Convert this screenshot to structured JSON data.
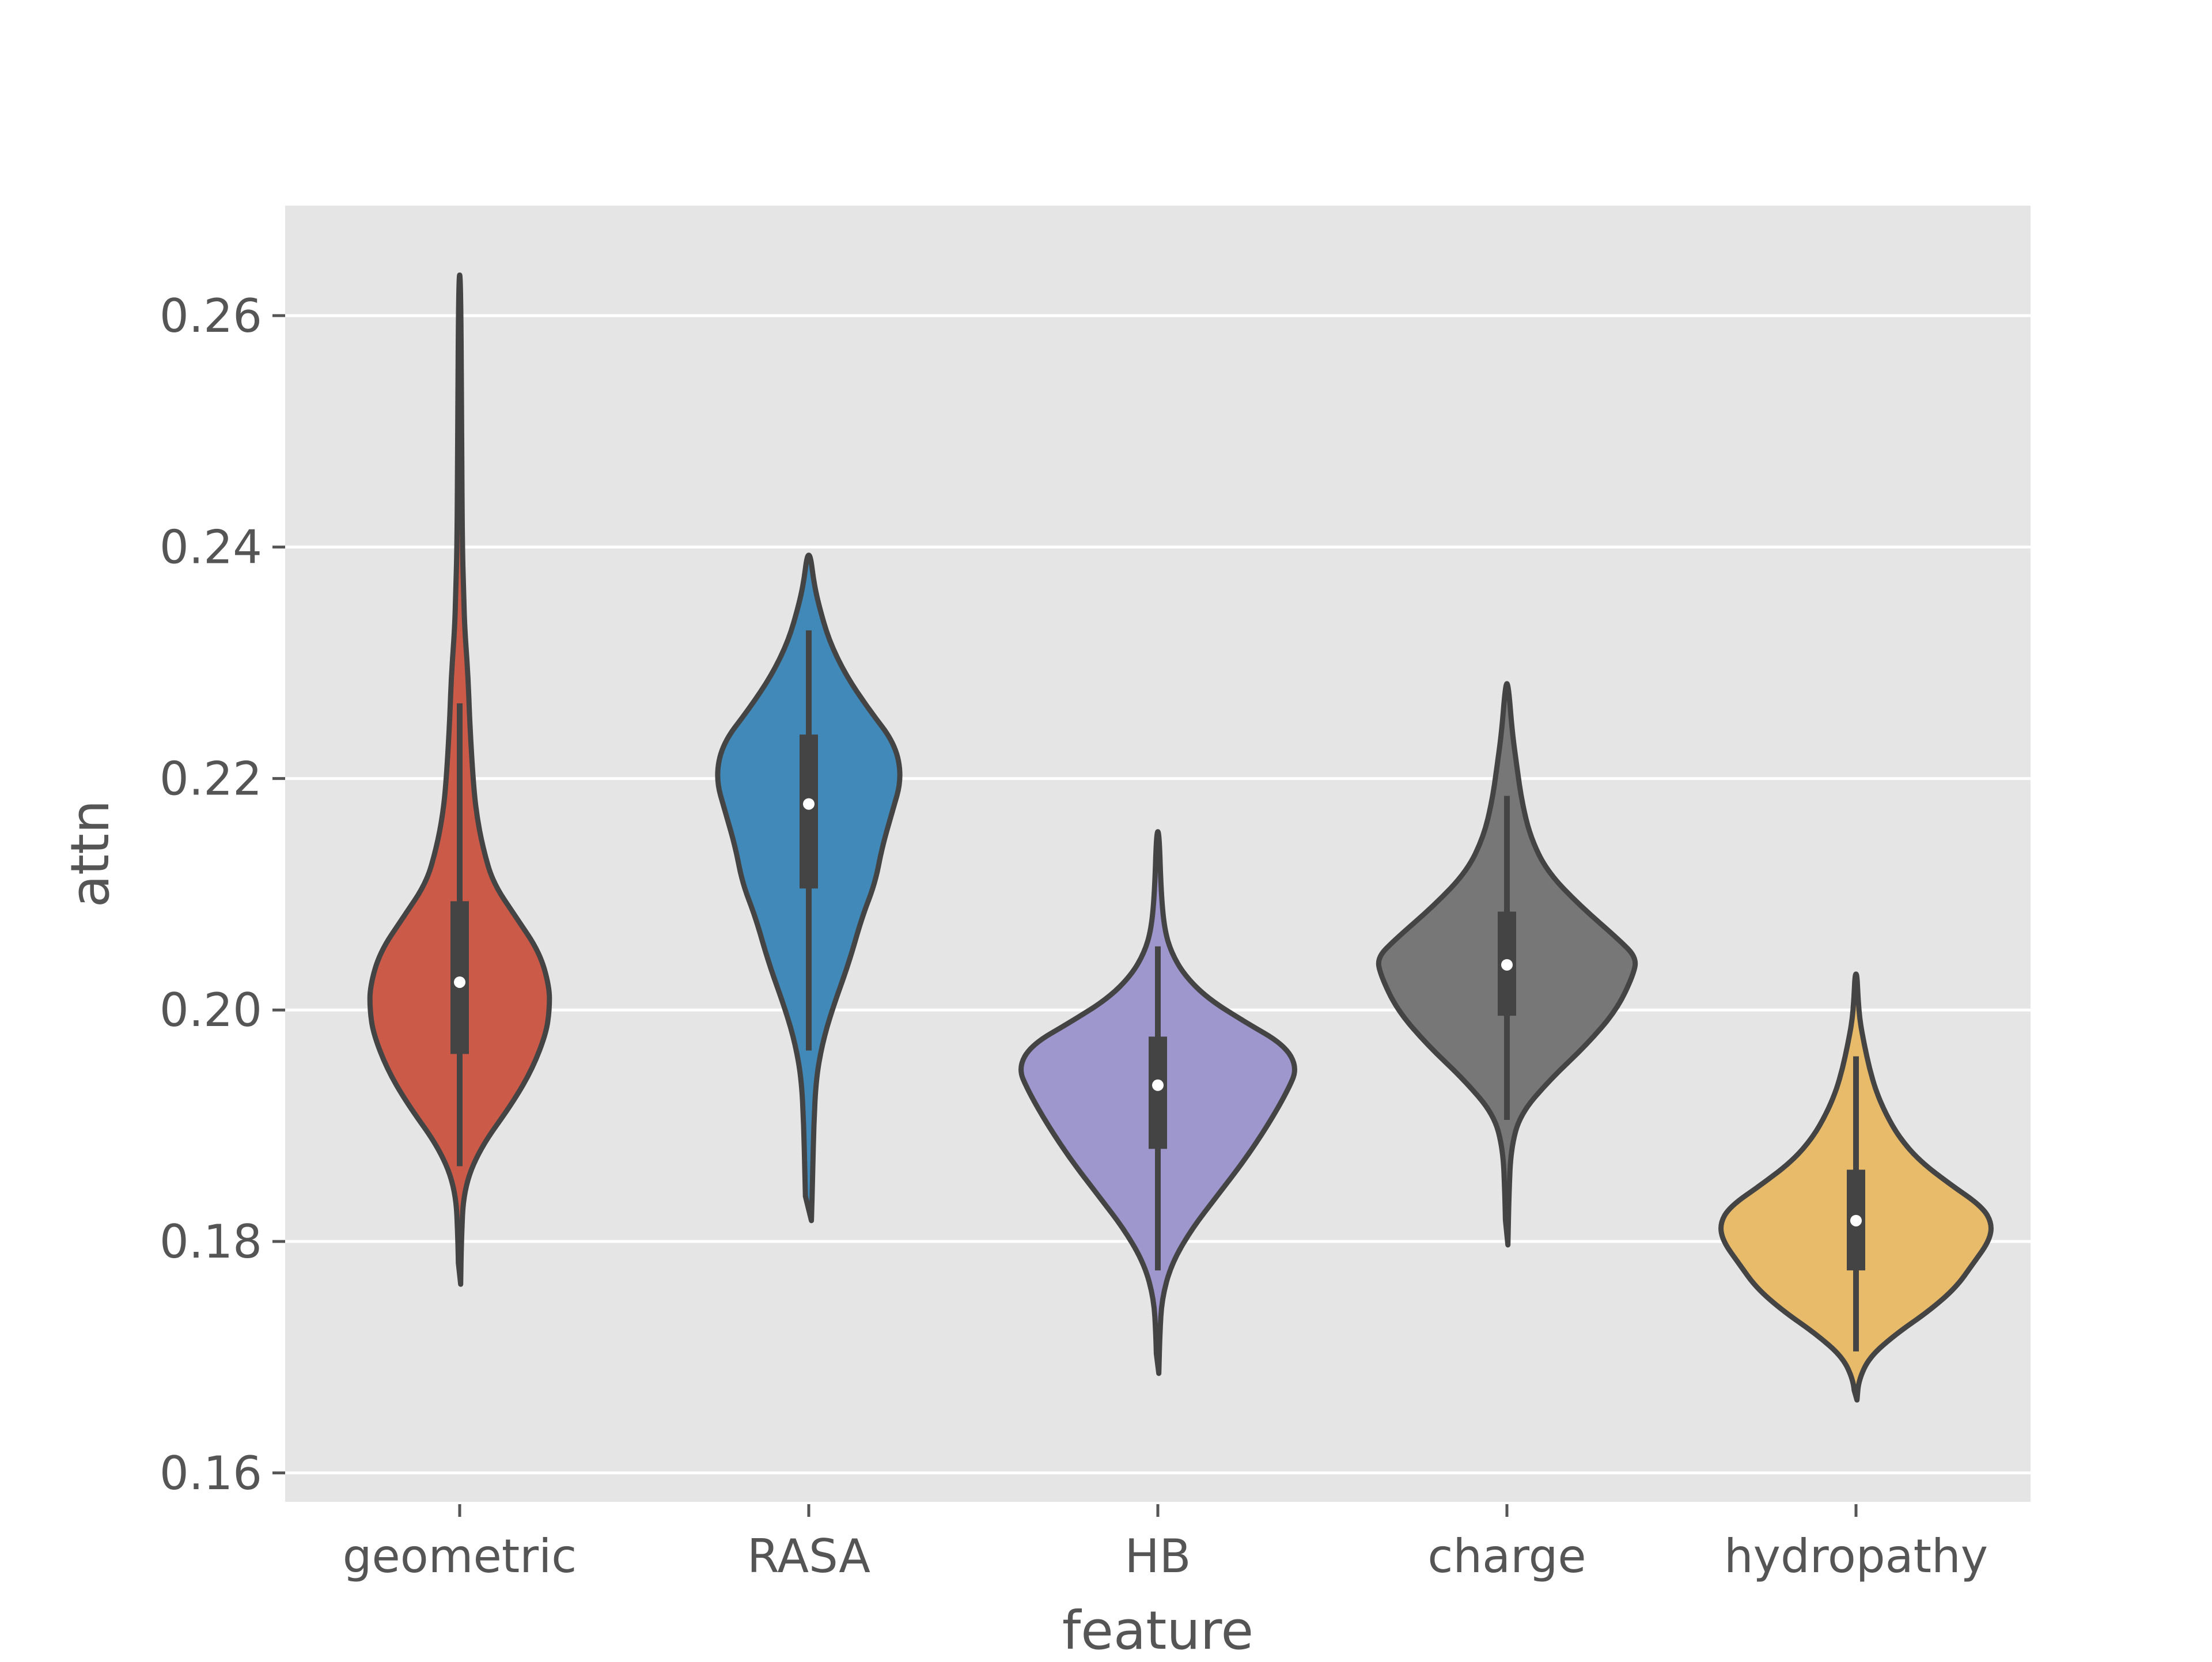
{
  "chart_data": {
    "type": "violin",
    "title": "",
    "xlabel": "feature",
    "ylabel": "attn",
    "ylim": [
      0.1575,
      0.2695
    ],
    "yticks": [
      0.16,
      0.18,
      0.2,
      0.22,
      0.24,
      0.26
    ],
    "ytick_labels": [
      "0.16",
      "0.18",
      "0.20",
      "0.22",
      "0.24",
      "0.26"
    ],
    "grid": true,
    "legend": "none",
    "categories": [
      "geometric",
      "RASA",
      "HB",
      "charge",
      "hydropathy"
    ],
    "series": [
      {
        "color": "#cc5a48",
        "min": 0.1763,
        "max": 0.2635,
        "q1": 0.1962,
        "median": 0.2024,
        "q3": 0.2094,
        "whisker_low": 0.1865,
        "whisker_high": 0.2265,
        "profile": [
          [
            0.1763,
            0.003
          ],
          [
            0.18,
            0.005
          ],
          [
            0.1845,
            0.012
          ],
          [
            0.188,
            0.06
          ],
          [
            0.192,
            0.16
          ],
          [
            0.195,
            0.22
          ],
          [
            0.198,
            0.26
          ],
          [
            0.2,
            0.27
          ],
          [
            0.202,
            0.27
          ],
          [
            0.205,
            0.24
          ],
          [
            0.208,
            0.17
          ],
          [
            0.211,
            0.1
          ],
          [
            0.214,
            0.07
          ],
          [
            0.217,
            0.05
          ],
          [
            0.22,
            0.04
          ],
          [
            0.225,
            0.03
          ],
          [
            0.229,
            0.025
          ],
          [
            0.233,
            0.015
          ],
          [
            0.236,
            0.012
          ],
          [
            0.24,
            0.008
          ],
          [
            0.25,
            0.006
          ],
          [
            0.2635,
            0.003
          ]
        ]
      },
      {
        "color": "#4089b8",
        "min": 0.1818,
        "max": 0.2393,
        "q1": 0.2105,
        "median": 0.2178,
        "q3": 0.2238,
        "whisker_low": 0.1965,
        "whisker_high": 0.2328,
        "profile": [
          [
            0.1818,
            0.008
          ],
          [
            0.186,
            0.012
          ],
          [
            0.19,
            0.015
          ],
          [
            0.194,
            0.022
          ],
          [
            0.197,
            0.04
          ],
          [
            0.2,
            0.07
          ],
          [
            0.204,
            0.12
          ],
          [
            0.208,
            0.16
          ],
          [
            0.211,
            0.2
          ],
          [
            0.214,
            0.22
          ],
          [
            0.217,
            0.25
          ],
          [
            0.22,
            0.28
          ],
          [
            0.223,
            0.26
          ],
          [
            0.226,
            0.18
          ],
          [
            0.229,
            0.11
          ],
          [
            0.232,
            0.06
          ],
          [
            0.235,
            0.03
          ],
          [
            0.237,
            0.015
          ],
          [
            0.2393,
            0.005
          ]
        ]
      },
      {
        "color": "#9e97cd",
        "min": 0.1686,
        "max": 0.2154,
        "q1": 0.188,
        "median": 0.1935,
        "q3": 0.1977,
        "whisker_low": 0.1775,
        "whisker_high": 0.2055,
        "profile": [
          [
            0.1686,
            0.003
          ],
          [
            0.172,
            0.006
          ],
          [
            0.175,
            0.012
          ],
          [
            0.178,
            0.04
          ],
          [
            0.181,
            0.1
          ],
          [
            0.184,
            0.18
          ],
          [
            0.187,
            0.26
          ],
          [
            0.19,
            0.33
          ],
          [
            0.193,
            0.39
          ],
          [
            0.195,
            0.42
          ],
          [
            0.197,
            0.38
          ],
          [
            0.199,
            0.26
          ],
          [
            0.201,
            0.15
          ],
          [
            0.203,
            0.08
          ],
          [
            0.205,
            0.04
          ],
          [
            0.207,
            0.02
          ],
          [
            0.21,
            0.01
          ],
          [
            0.2154,
            0.004
          ]
        ]
      },
      {
        "color": "#777777",
        "min": 0.1797,
        "max": 0.2282,
        "q1": 0.1995,
        "median": 0.2039,
        "q3": 0.2085,
        "whisker_low": 0.1905,
        "whisker_high": 0.2185,
        "profile": [
          [
            0.1797,
            0.003
          ],
          [
            0.184,
            0.006
          ],
          [
            0.188,
            0.012
          ],
          [
            0.191,
            0.04
          ],
          [
            0.194,
            0.13
          ],
          [
            0.197,
            0.24
          ],
          [
            0.2,
            0.33
          ],
          [
            0.203,
            0.38
          ],
          [
            0.2045,
            0.39
          ],
          [
            0.206,
            0.34
          ],
          [
            0.209,
            0.22
          ],
          [
            0.212,
            0.12
          ],
          [
            0.215,
            0.07
          ],
          [
            0.218,
            0.045
          ],
          [
            0.221,
            0.03
          ],
          [
            0.224,
            0.016
          ],
          [
            0.2282,
            0.004
          ]
        ]
      },
      {
        "color": "#e8bb6b",
        "min": 0.1663,
        "max": 0.2031,
        "q1": 0.1775,
        "median": 0.1818,
        "q3": 0.1862,
        "whisker_low": 0.1705,
        "whisker_high": 0.196,
        "profile": [
          [
            0.1663,
            0.003
          ],
          [
            0.168,
            0.008
          ],
          [
            0.17,
            0.04
          ],
          [
            0.172,
            0.12
          ],
          [
            0.174,
            0.22
          ],
          [
            0.176,
            0.3
          ],
          [
            0.178,
            0.35
          ],
          [
            0.18,
            0.4
          ],
          [
            0.1815,
            0.41
          ],
          [
            0.183,
            0.38
          ],
          [
            0.185,
            0.28
          ],
          [
            0.187,
            0.19
          ],
          [
            0.189,
            0.13
          ],
          [
            0.191,
            0.09
          ],
          [
            0.193,
            0.06
          ],
          [
            0.195,
            0.04
          ],
          [
            0.197,
            0.025
          ],
          [
            0.199,
            0.012
          ],
          [
            0.201,
            0.006
          ],
          [
            0.2031,
            0.003
          ]
        ]
      }
    ]
  }
}
